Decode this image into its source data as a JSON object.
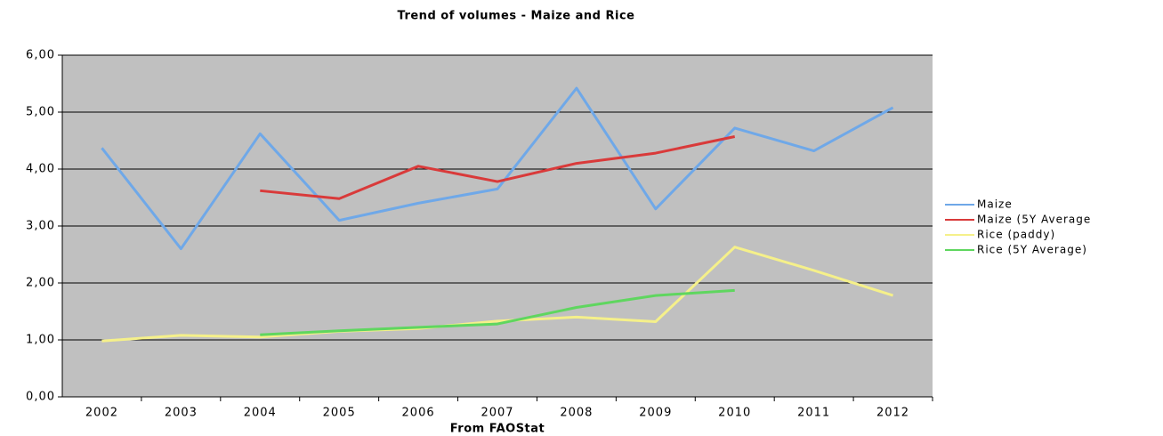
{
  "chart_data": {
    "type": "line",
    "title": "Trend of volumes - Maize and Rice",
    "x_label": "From FAOStat",
    "categories": [
      "2002",
      "2003",
      "2004",
      "2005",
      "2006",
      "2007",
      "2008",
      "2009",
      "2010",
      "2011",
      "2012"
    ],
    "series": [
      {
        "name": "Maize",
        "color": "#6fa8e8",
        "values": [
          4.37,
          2.6,
          4.62,
          3.1,
          3.4,
          3.65,
          5.42,
          3.3,
          4.72,
          4.32,
          5.08
        ]
      },
      {
        "name": "Maize (5Y Average",
        "color": "#d93a3a",
        "values": [
          null,
          null,
          3.62,
          3.48,
          4.05,
          3.78,
          4.1,
          4.28,
          4.57,
          null,
          null
        ]
      },
      {
        "name": "Rice (paddy)",
        "color": "#f5f08a",
        "values": [
          0.98,
          1.08,
          1.05,
          1.15,
          1.2,
          1.33,
          1.4,
          1.32,
          2.63,
          2.22,
          1.78
        ]
      },
      {
        "name": "Rice (5Y Average)",
        "color": "#5fd65f",
        "values": [
          null,
          null,
          1.09,
          1.16,
          1.22,
          1.28,
          1.57,
          1.78,
          1.87,
          null,
          null
        ]
      }
    ],
    "ylim": [
      0,
      6
    ],
    "yticks": [
      {
        "value": 0,
        "label": "0,00"
      },
      {
        "value": 1,
        "label": "1,00"
      },
      {
        "value": 2,
        "label": "2,00"
      },
      {
        "value": 3,
        "label": "3,00"
      },
      {
        "value": 4,
        "label": "4,00"
      },
      {
        "value": 5,
        "label": "5,00"
      },
      {
        "value": 6,
        "label": "6,00"
      }
    ],
    "grid": true,
    "legend": "right",
    "plot_background": "#c0c0c0"
  }
}
